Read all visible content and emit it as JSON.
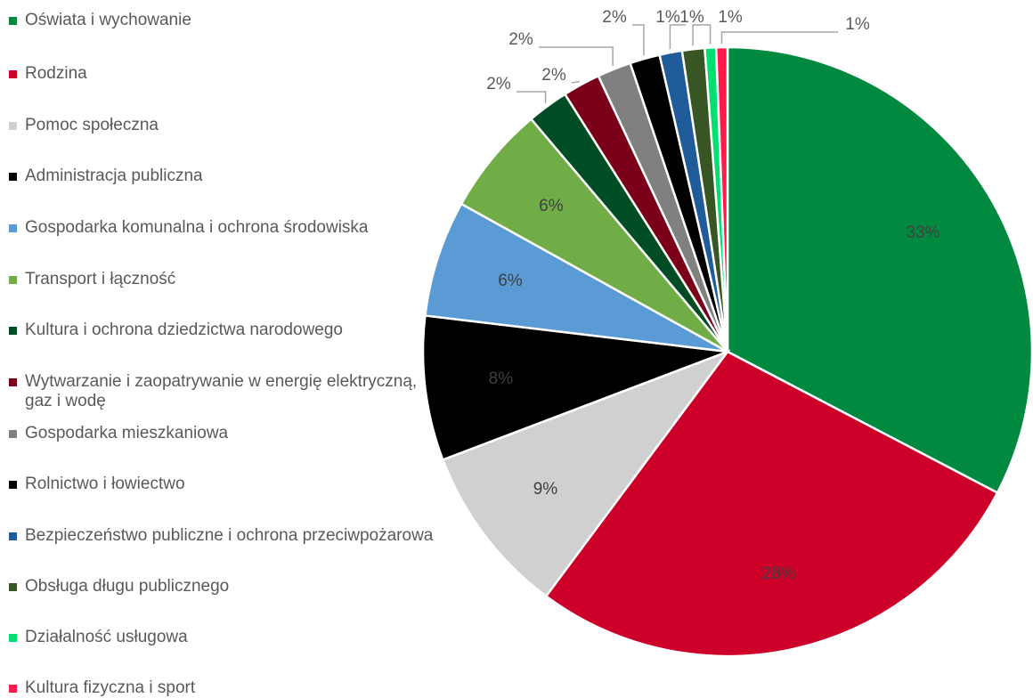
{
  "chart_data": {
    "type": "pie",
    "categories": [
      "Oświata i wychowanie",
      "Rodzina",
      "Pomoc społeczna",
      "Administracja publiczna",
      "Gospodarka komunalna i ochrona środowiska",
      "Transport i łączność",
      "Kultura i ochrona dziedzictwa narodowego",
      "Wytwarzanie i zaopatrywanie w energię elektryczną, gaz i wodę",
      "Gospodarka mieszkaniowa",
      "Rolnictwo i łowiectwo",
      "Bezpieczeństwo publiczne i ochrona przeciwpożarowa",
      "Obsługa długu publicznego",
      "Działalność usługowa",
      "Kultura fizyczna i sport"
    ],
    "values": [
      32.8,
      27.6,
      9.1,
      7.7,
      6.2,
      5.8,
      2.2,
      2.0,
      1.8,
      1.6,
      1.2,
      1.2,
      0.6,
      0.6
    ],
    "value_labels": [
      "33%",
      "28%",
      "9%",
      "8%",
      "6%",
      "6%",
      "2%",
      "2%",
      "2%",
      "2%",
      "1%",
      "1%",
      "1%",
      "1%"
    ],
    "colors": [
      "#00893f",
      "#cc0029",
      "#d0d0d0",
      "#000000",
      "#5b9bd5",
      "#70ad47",
      "#004d25",
      "#7a0019",
      "#808080",
      "#000000",
      "#1f5c99",
      "#375623",
      "#00e070",
      "#ff1a4a"
    ]
  }
}
